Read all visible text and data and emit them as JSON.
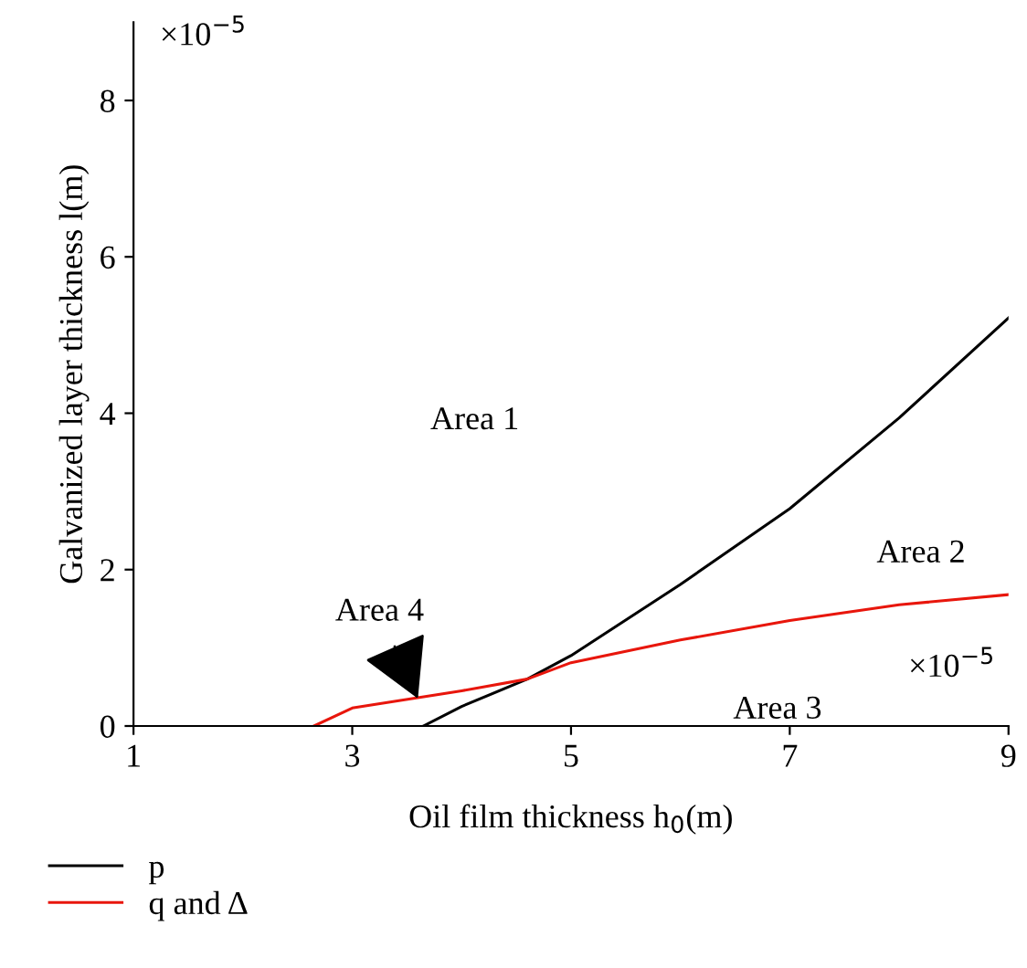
{
  "chart_data": {
    "type": "line",
    "xlabel": "Oil film thickness h$_{0}$(m)",
    "ylabel": "Galvanized layer thickness l(m)",
    "xlim": [
      1,
      9
    ],
    "ylim": [
      0,
      9
    ],
    "xticks": [
      1,
      3,
      5,
      7,
      9
    ],
    "yticks": [
      0,
      2,
      4,
      6,
      8
    ],
    "grid": false,
    "legend": "bottom left",
    "series": [
      {
        "name": "p",
        "color": "#000000",
        "x": [
          3.65,
          4,
          4.6,
          5,
          6,
          7,
          8,
          9
        ],
        "values": [
          0,
          0.25,
          0.6,
          0.9,
          1.81,
          2.78,
          3.94,
          5.22
        ]
      },
      {
        "name": "q and Δ",
        "color": "#e8160c",
        "x": [
          2.65,
          3,
          4,
          4.6,
          5,
          6,
          7,
          8,
          9
        ],
        "values": [
          0,
          0.23,
          0.45,
          0.6,
          0.81,
          1.1,
          1.35,
          1.55,
          1.68
        ]
      }
    ],
    "annotations": [
      "×10$^{−5}$",
      "×10$^{−5}$",
      "Area 1",
      "Area 2",
      "Area 3",
      {
        "text": "Area 4",
        "x": 3.6,
        "y": 0.35
      }
    ]
  }
}
